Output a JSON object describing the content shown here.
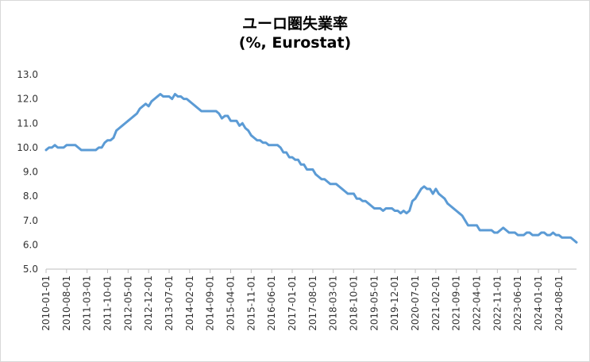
{
  "chart_data": {
    "type": "line",
    "title_line1": "ユーロ圏失業率",
    "title_line2": "(%, Eurostat)",
    "xlabel": "",
    "ylabel": "",
    "ylim": [
      5.0,
      13.0
    ],
    "y_ticks": [
      "5.0",
      "6.0",
      "7.0",
      "8.0",
      "9.0",
      "10.0",
      "11.0",
      "12.0",
      "13.0"
    ],
    "x_tick_labels": [
      "2010-01-01",
      "2010-08-01",
      "2011-03-01",
      "2011-10-01",
      "2012-05-01",
      "2012-12-01",
      "2013-07-01",
      "2014-02-01",
      "2014-09-01",
      "2015-04-01",
      "2015-11-01",
      "2016-06-01",
      "2017-01-01",
      "2017-08-01",
      "2018-03-01",
      "2018-10-01",
      "2019-05-01",
      "2019-12-01",
      "2020-07-01",
      "2021-02-01",
      "2021-09-01",
      "2022-04-01",
      "2022-11-01",
      "2023-06-01",
      "2024-01-01",
      "2024-08-01"
    ],
    "grid": "none",
    "legend": "none",
    "color": "#5b9bd5",
    "series": [
      {
        "x_start": "2010-01-01",
        "frequency": "monthly",
        "values": [
          9.9,
          10.0,
          10.0,
          10.1,
          10.0,
          10.0,
          10.0,
          10.1,
          10.1,
          10.1,
          10.1,
          10.0,
          9.9,
          9.9,
          9.9,
          9.9,
          9.9,
          9.9,
          10.0,
          10.0,
          10.2,
          10.3,
          10.3,
          10.4,
          10.7,
          10.8,
          10.9,
          11.0,
          11.1,
          11.2,
          11.3,
          11.4,
          11.6,
          11.7,
          11.8,
          11.7,
          11.9,
          12.0,
          12.1,
          12.2,
          12.1,
          12.1,
          12.1,
          12.0,
          12.2,
          12.1,
          12.1,
          12.0,
          12.0,
          11.9,
          11.8,
          11.7,
          11.6,
          11.5,
          11.5,
          11.5,
          11.5,
          11.5,
          11.5,
          11.4,
          11.2,
          11.3,
          11.3,
          11.1,
          11.1,
          11.1,
          10.9,
          11.0,
          10.8,
          10.7,
          10.5,
          10.4,
          10.3,
          10.3,
          10.2,
          10.2,
          10.1,
          10.1,
          10.1,
          10.1,
          10.0,
          9.8,
          9.8,
          9.6,
          9.6,
          9.5,
          9.5,
          9.3,
          9.3,
          9.1,
          9.1,
          9.1,
          8.9,
          8.8,
          8.7,
          8.7,
          8.6,
          8.5,
          8.5,
          8.5,
          8.4,
          8.3,
          8.2,
          8.1,
          8.1,
          8.1,
          7.9,
          7.9,
          7.8,
          7.8,
          7.7,
          7.6,
          7.5,
          7.5,
          7.5,
          7.4,
          7.5,
          7.5,
          7.5,
          7.4,
          7.4,
          7.3,
          7.4,
          7.3,
          7.4,
          7.8,
          7.9,
          8.1,
          8.3,
          8.4,
          8.3,
          8.3,
          8.1,
          8.3,
          8.1,
          8.0,
          7.9,
          7.7,
          7.6,
          7.5,
          7.4,
          7.3,
          7.2,
          7.0,
          6.8,
          6.8,
          6.8,
          6.8,
          6.6,
          6.6,
          6.6,
          6.6,
          6.6,
          6.5,
          6.5,
          6.6,
          6.7,
          6.6,
          6.5,
          6.5,
          6.5,
          6.4,
          6.4,
          6.4,
          6.5,
          6.5,
          6.4,
          6.4,
          6.4,
          6.5,
          6.5,
          6.4,
          6.4,
          6.5,
          6.4,
          6.4,
          6.3,
          6.3,
          6.3,
          6.3,
          6.2,
          6.1
        ]
      }
    ]
  }
}
